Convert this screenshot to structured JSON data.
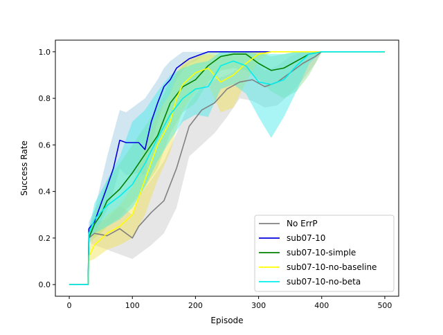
{
  "chart_data": {
    "type": "line",
    "title": "",
    "xlabel": "Episode",
    "ylabel": "Success Rate",
    "xlim": [
      -22,
      522
    ],
    "ylim": [
      -0.05,
      1.05
    ],
    "xticks": [
      0,
      100,
      200,
      300,
      400,
      500
    ],
    "yticks": [
      0.0,
      0.2,
      0.4,
      0.6,
      0.8,
      1.0
    ],
    "xtick_labels": [
      "0",
      "100",
      "200",
      "300",
      "400",
      "500"
    ],
    "ytick_labels": [
      "0.0",
      "0.2",
      "0.4",
      "0.6",
      "0.8",
      "1.0"
    ],
    "grid": false,
    "legend": {
      "location": "lower right"
    },
    "series": [
      {
        "name": "No ErrP",
        "color": "#808080",
        "x": [
          0,
          30,
          31,
          40,
          60,
          80,
          100,
          110,
          130,
          150,
          170,
          190,
          210,
          230,
          250,
          270,
          290,
          310,
          330,
          350,
          370,
          390,
          400,
          500
        ],
        "y": [
          0.0,
          0.0,
          0.2,
          0.22,
          0.21,
          0.24,
          0.2,
          0.25,
          0.31,
          0.36,
          0.5,
          0.68,
          0.75,
          0.78,
          0.84,
          0.87,
          0.88,
          0.85,
          0.87,
          0.91,
          0.95,
          0.98,
          1.0,
          1.0
        ],
        "band_low": [
          0.0,
          0.0,
          0.18,
          0.17,
          0.15,
          0.13,
          0.11,
          0.13,
          0.17,
          0.22,
          0.33,
          0.55,
          0.6,
          0.65,
          0.72,
          0.8,
          0.79,
          0.76,
          0.77,
          0.82,
          0.88,
          0.95,
          1.0,
          1.0
        ],
        "band_high": [
          0.0,
          0.0,
          0.22,
          0.27,
          0.28,
          0.34,
          0.3,
          0.38,
          0.45,
          0.53,
          0.65,
          0.78,
          0.85,
          0.88,
          0.9,
          0.93,
          0.96,
          0.92,
          0.94,
          0.98,
          1.0,
          1.0,
          1.0,
          1.0
        ]
      },
      {
        "name": "sub07-10",
        "color": "#0000dd",
        "x": [
          0,
          30,
          31,
          40,
          60,
          70,
          80,
          90,
          110,
          120,
          130,
          140,
          150,
          160,
          170,
          180,
          190,
          200,
          210,
          220,
          230,
          320
        ],
        "y": [
          0.0,
          0.0,
          0.24,
          0.27,
          0.42,
          0.5,
          0.62,
          0.61,
          0.61,
          0.58,
          0.7,
          0.78,
          0.85,
          0.88,
          0.93,
          0.95,
          0.97,
          0.98,
          0.99,
          1.0,
          1.0,
          1.0
        ],
        "band_low": [
          0.0,
          0.0,
          0.22,
          0.22,
          0.32,
          0.4,
          0.5,
          0.47,
          0.48,
          0.47,
          0.6,
          0.7,
          0.78,
          0.82,
          0.88,
          0.92,
          0.95,
          0.96,
          0.98,
          1.0,
          1.0,
          1.0
        ],
        "band_high": [
          0.0,
          0.0,
          0.27,
          0.32,
          0.55,
          0.65,
          0.75,
          0.74,
          0.78,
          0.8,
          0.84,
          0.88,
          0.93,
          0.96,
          0.98,
          1.0,
          1.0,
          1.0,
          1.0,
          1.0,
          1.0,
          1.0
        ]
      },
      {
        "name": "sub07-10-simple",
        "color": "#008000",
        "x": [
          0,
          30,
          31,
          40,
          50,
          60,
          80,
          100,
          120,
          140,
          160,
          180,
          200,
          220,
          240,
          260,
          280,
          300,
          320,
          340,
          360,
          380,
          400,
          500
        ],
        "y": [
          0.0,
          0.0,
          0.2,
          0.26,
          0.3,
          0.36,
          0.41,
          0.48,
          0.56,
          0.64,
          0.78,
          0.85,
          0.88,
          0.94,
          0.98,
          0.99,
          0.99,
          0.95,
          0.92,
          0.93,
          0.96,
          0.99,
          1.0,
          1.0
        ],
        "band_low": [
          0.0,
          0.0,
          0.18,
          0.2,
          0.22,
          0.25,
          0.29,
          0.35,
          0.42,
          0.5,
          0.65,
          0.74,
          0.78,
          0.87,
          0.92,
          0.93,
          0.92,
          0.88,
          0.83,
          0.8,
          0.83,
          0.9,
          1.0,
          1.0
        ],
        "band_high": [
          0.0,
          0.0,
          0.23,
          0.32,
          0.37,
          0.45,
          0.52,
          0.6,
          0.68,
          0.76,
          0.88,
          0.94,
          0.97,
          1.0,
          1.0,
          1.0,
          1.0,
          1.0,
          0.98,
          0.99,
          1.0,
          1.0,
          1.0,
          1.0
        ]
      },
      {
        "name": "sub07-10-no-baseline",
        "color": "#ffff00",
        "x": [
          0,
          30,
          31,
          40,
          60,
          80,
          100,
          120,
          140,
          160,
          170,
          180,
          200,
          220,
          240,
          260,
          280,
          300,
          320,
          340,
          360,
          380,
          400,
          500
        ],
        "y": [
          0.0,
          0.0,
          0.12,
          0.17,
          0.22,
          0.25,
          0.3,
          0.45,
          0.6,
          0.7,
          0.8,
          0.86,
          0.91,
          0.93,
          0.87,
          0.9,
          0.95,
          0.99,
          1.0,
          1.0,
          1.0,
          1.0,
          1.0,
          1.0
        ],
        "band_low": [
          0.0,
          0.0,
          0.1,
          0.11,
          0.15,
          0.17,
          0.2,
          0.3,
          0.45,
          0.57,
          0.67,
          0.75,
          0.83,
          0.86,
          0.74,
          0.76,
          0.87,
          0.96,
          1.0,
          1.0,
          1.0,
          1.0,
          1.0,
          1.0
        ],
        "band_high": [
          0.0,
          0.0,
          0.15,
          0.24,
          0.3,
          0.34,
          0.42,
          0.6,
          0.74,
          0.82,
          0.91,
          0.96,
          0.98,
          0.99,
          0.98,
          1.0,
          1.0,
          1.0,
          1.0,
          1.0,
          1.0,
          1.0,
          1.0,
          1.0
        ]
      },
      {
        "name": "sub07-10-no-beta",
        "color": "#00eeee",
        "x": [
          0,
          30,
          31,
          40,
          60,
          80,
          100,
          120,
          140,
          160,
          180,
          200,
          220,
          240,
          260,
          280,
          300,
          320,
          340,
          360,
          380,
          400,
          500
        ],
        "y": [
          0.0,
          0.0,
          0.22,
          0.28,
          0.34,
          0.38,
          0.43,
          0.52,
          0.63,
          0.73,
          0.8,
          0.84,
          0.85,
          0.94,
          0.96,
          0.94,
          0.87,
          0.86,
          0.88,
          0.94,
          0.99,
          1.0,
          1.0
        ],
        "band_low": [
          0.0,
          0.0,
          0.2,
          0.22,
          0.25,
          0.28,
          0.33,
          0.42,
          0.53,
          0.62,
          0.7,
          0.73,
          0.72,
          0.84,
          0.86,
          0.82,
          0.72,
          0.63,
          0.72,
          0.83,
          0.95,
          1.0,
          1.0
        ],
        "band_high": [
          0.0,
          0.0,
          0.24,
          0.35,
          0.45,
          0.55,
          0.7,
          0.75,
          0.83,
          0.9,
          0.93,
          0.95,
          0.96,
          1.0,
          1.0,
          1.0,
          0.99,
          0.99,
          0.99,
          1.0,
          1.0,
          1.0,
          1.0
        ]
      }
    ],
    "band_colors": [
      "#c8c8c8",
      "#9ac8e0",
      "#8fdf8f",
      "#f2e050",
      "#40e8e8"
    ]
  }
}
